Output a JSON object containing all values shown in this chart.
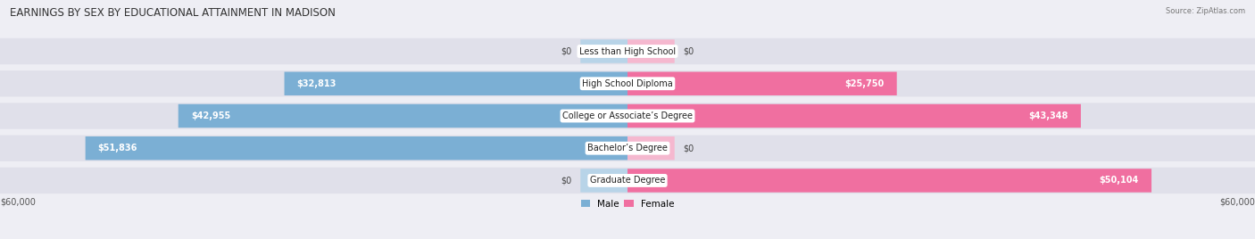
{
  "title": "EARNINGS BY SEX BY EDUCATIONAL ATTAINMENT IN MADISON",
  "source": "Source: ZipAtlas.com",
  "categories": [
    "Less than High School",
    "High School Diploma",
    "College or Associate’s Degree",
    "Bachelor’s Degree",
    "Graduate Degree"
  ],
  "male_values": [
    0,
    32813,
    42955,
    51836,
    0
  ],
  "female_values": [
    0,
    25750,
    43348,
    0,
    50104
  ],
  "male_labels": [
    "$0",
    "$32,813",
    "$42,955",
    "$51,836",
    "$0"
  ],
  "female_labels": [
    "$0",
    "$25,750",
    "$43,348",
    "$0",
    "$50,104"
  ],
  "max_value": 60000,
  "male_color": "#7bafd4",
  "male_color_light": "#b8d4e8",
  "female_color": "#f06fa0",
  "female_color_light": "#f5b8cf",
  "bg_color": "#eeeef4",
  "row_bg_color": "#e0e0ea",
  "title_fontsize": 8.5,
  "label_fontsize": 7,
  "cat_fontsize": 7,
  "axis_fontsize": 7,
  "legend_fontsize": 7.5
}
